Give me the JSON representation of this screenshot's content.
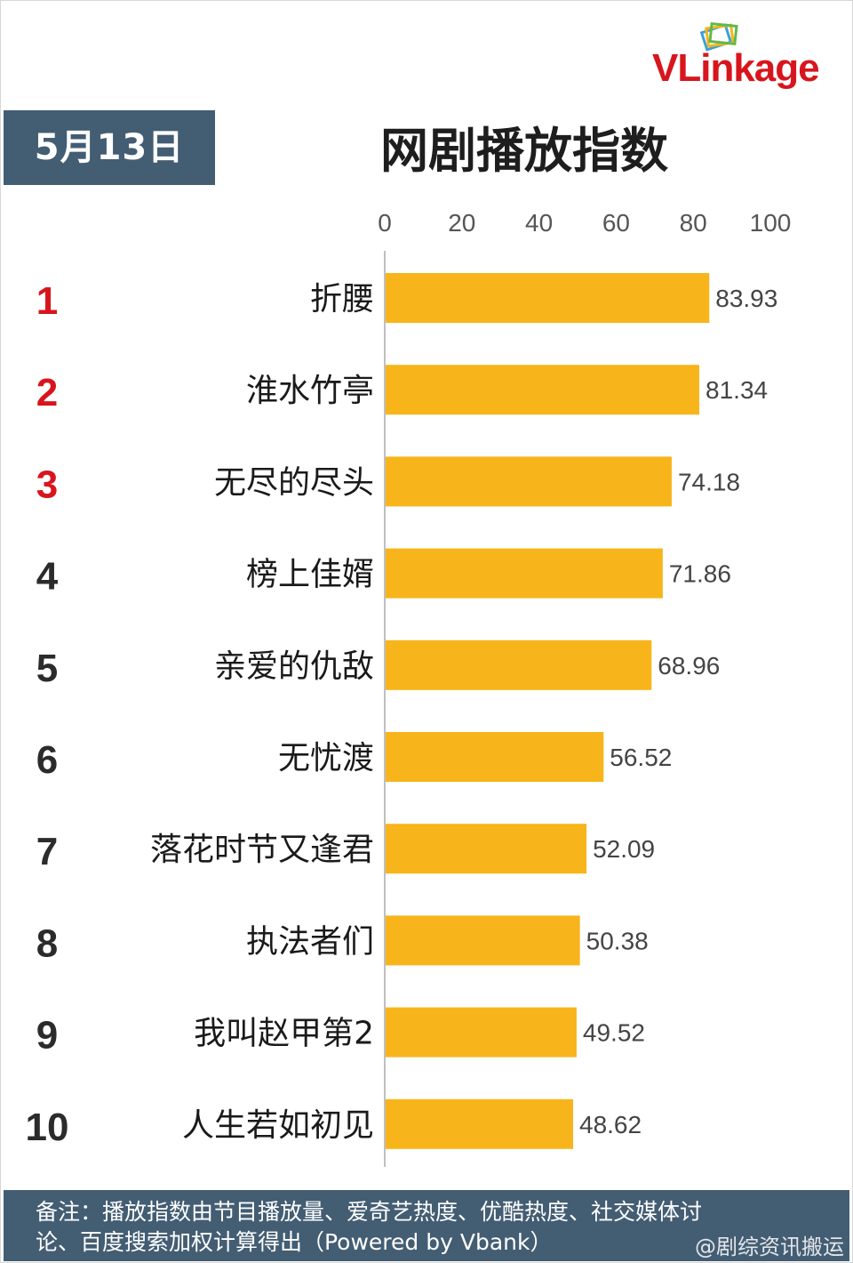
{
  "header": {
    "date": "5月13日",
    "title": "网剧播放指数",
    "brand": "VLinkage"
  },
  "chart_data": {
    "type": "bar",
    "orientation": "horizontal",
    "title": "网剧播放指数",
    "xlim": [
      0,
      100
    ],
    "x_ticks": [
      0,
      20,
      40,
      60,
      80,
      100
    ],
    "grid": false,
    "bar_color": "#f7b51b",
    "rank_highlight_color": "#d8151d",
    "ranks": [
      "1",
      "2",
      "3",
      "4",
      "5",
      "6",
      "7",
      "8",
      "9",
      "10"
    ],
    "categories": [
      "折腰",
      "淮水竹亭",
      "无尽的尽头",
      "榜上佳婿",
      "亲爱的仇敌",
      "无忧渡",
      "落花时节又逢君",
      "执法者们",
      "我叫赵甲第2",
      "人生若如初见"
    ],
    "values": [
      83.93,
      81.34,
      74.18,
      71.86,
      68.96,
      56.52,
      52.09,
      50.38,
      49.52,
      48.62
    ],
    "value_labels": [
      "83.93",
      "81.34",
      "74.18",
      "71.86",
      "68.96",
      "56.52",
      "52.09",
      "50.38",
      "49.52",
      "48.62"
    ]
  },
  "footer": {
    "note_line1": "备注：播放指数由节目播放量、爱奇艺热度、优酷热度、社交媒体讨",
    "note_line2": "论、百度搜索加权计算得出（Powered by Vbank）",
    "watermark": "@剧综资讯搬运"
  }
}
